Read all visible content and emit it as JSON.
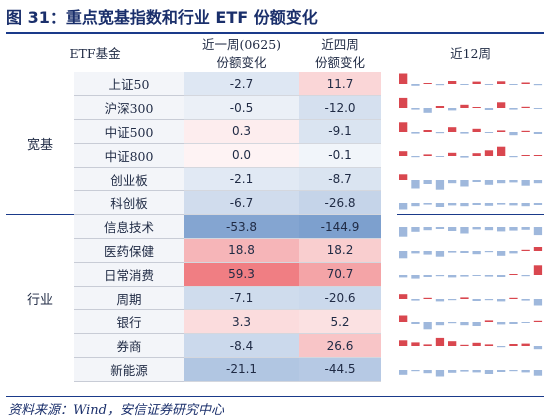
{
  "figure_title": "图 31：重点宽基指数和行业 ETF 份额变化",
  "source": "资料来源：Wind，安信证券研究中心",
  "headers": {
    "col1": "ETF基金",
    "col2_line1": "近一周(0625)",
    "col2_line2": "份额变化",
    "col3_line1": "近四周",
    "col3_line2": "份额变化",
    "col4": "近12周"
  },
  "groups": [
    {
      "label": "宽基",
      "rows": [
        {
          "name": "上证50",
          "w1": "-2.7",
          "w4": "11.7",
          "w1v": -2.7,
          "w4v": 11.7,
          "spark": [
            3.5,
            -0.6,
            0.3,
            -0.4,
            1.0,
            -0.3,
            0.8,
            -0.2,
            0.9,
            -0.3,
            0.5,
            -0.4
          ]
        },
        {
          "name": "沪深300",
          "w1": "-0.5",
          "w4": "-12.0",
          "w1v": -0.5,
          "w4v": -12.0,
          "spark": [
            2.5,
            -0.4,
            -1.2,
            0.5,
            -0.6,
            0.8,
            0.2,
            -0.5,
            1.4,
            -0.4,
            0.3,
            -0.2
          ]
        },
        {
          "name": "中证500",
          "w1": "0.3",
          "w4": "-9.1",
          "w1v": 0.3,
          "w4v": -9.1,
          "spark": [
            2.4,
            -0.4,
            0.5,
            -0.3,
            1.2,
            -0.4,
            0.8,
            -0.2,
            0.4,
            -0.8,
            0.3,
            -0.5
          ]
        },
        {
          "name": "中证800",
          "w1": "0.0",
          "w4": "-0.1",
          "w1v": 0.0,
          "w4v": -0.1,
          "spark": [
            1.2,
            -0.3,
            0.4,
            -0.2,
            0.8,
            -0.4,
            0.7,
            1.4,
            2.3,
            -0.3,
            0.2,
            0.0
          ]
        },
        {
          "name": "创业板",
          "w1": "-2.1",
          "w4": "-8.7",
          "w1v": -2.1,
          "w4v": -8.7,
          "spark": [
            1.4,
            -2.1,
            -1.0,
            -2.4,
            -0.8,
            -1.6,
            -0.5,
            -1.2,
            -0.8,
            -0.6,
            -1.4,
            -0.8
          ]
        },
        {
          "name": "科创板",
          "w1": "-6.7",
          "w4": "-26.8",
          "w1v": -6.7,
          "w4v": -26.8,
          "spark": [
            -1.6,
            -0.8,
            -0.4,
            -1.0,
            -0.6,
            -0.8,
            -0.5,
            -0.7,
            -0.4,
            -0.6,
            -0.8,
            -0.5
          ]
        }
      ]
    },
    {
      "label": "行业",
      "rows": [
        {
          "name": "信息技术",
          "w1": "-53.8",
          "w4": "-144.9",
          "w1v": -53.8,
          "w4v": -144.9,
          "spark": [
            -2.4,
            -1.2,
            -0.8,
            -0.5,
            -1.0,
            -1.6,
            -0.6,
            -0.8,
            -1.1,
            -0.9,
            -0.7,
            -2.0
          ]
        },
        {
          "name": "医药保健",
          "w1": "18.8",
          "w4": "18.2",
          "w1v": 18.8,
          "w4v": 18.2,
          "spark": [
            -1.8,
            -0.6,
            -0.9,
            -1.4,
            -0.4,
            -0.5,
            -0.8,
            -0.3,
            -1.2,
            -0.6,
            0.3,
            1.0
          ]
        },
        {
          "name": "日常消费",
          "w1": "59.3",
          "w4": "70.7",
          "w1v": 59.3,
          "w4v": 70.7,
          "spark": [
            -0.6,
            -0.9,
            -0.5,
            -0.3,
            -0.6,
            -0.4,
            -0.2,
            -0.4,
            -0.5,
            0.2,
            -0.3,
            2.4
          ]
        },
        {
          "name": "周期",
          "w1": "-7.1",
          "w4": "-20.6",
          "w1v": -7.1,
          "w4v": -20.6,
          "spark": [
            1.2,
            -0.4,
            0.3,
            -0.6,
            -0.3,
            0.4,
            -0.5,
            -0.3,
            -0.6,
            0.3,
            -0.4,
            -1.6
          ]
        },
        {
          "name": "银行",
          "w1": "3.3",
          "w4": "5.2",
          "w1v": 3.3,
          "w4v": 5.2,
          "spark": [
            1.6,
            -0.5,
            -1.8,
            -0.8,
            -0.3,
            -0.8,
            -1.0,
            0.4,
            -0.6,
            -0.5,
            -0.2,
            0.3
          ]
        },
        {
          "name": "券商",
          "w1": "-8.4",
          "w4": "26.6",
          "w1v": -8.4,
          "w4v": 26.6,
          "spark": [
            1.4,
            0.9,
            0.4,
            2.0,
            1.2,
            0.3,
            0.8,
            0.4,
            -0.3,
            0.5,
            0.6,
            -0.8
          ]
        },
        {
          "name": "新能源",
          "w1": "-21.1",
          "w4": "-44.5",
          "w1v": -21.1,
          "w4v": -44.5,
          "spark": [
            -1.2,
            -0.3,
            -0.8,
            -1.6,
            -0.7,
            -0.4,
            -0.6,
            -1.0,
            -0.5,
            -0.3,
            -0.6,
            -1.4
          ]
        }
      ]
    }
  ],
  "colors": {
    "positive_bar": "#d9474f",
    "negative_bar": "#9fb8dc",
    "positive_strong": "#ee6f74",
    "negative_strong": "#6f95c9"
  }
}
